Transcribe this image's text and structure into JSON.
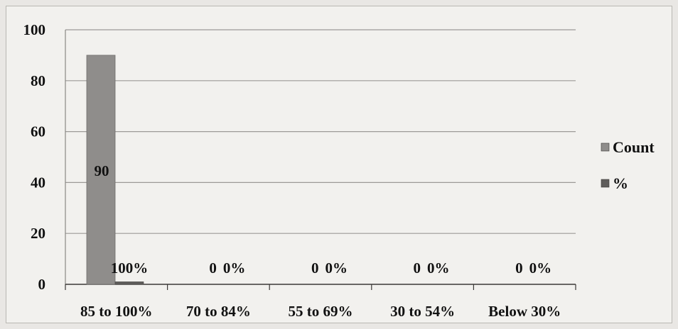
{
  "chart_data": {
    "type": "bar",
    "categories": [
      "85 to 100%",
      "70 to 84%",
      "55 to 69%",
      "30 to 54%",
      "Below 30%"
    ],
    "series": [
      {
        "name": "Count",
        "values": [
          90,
          0,
          0,
          0,
          0
        ],
        "labels": [
          "90",
          "0",
          "0",
          "0",
          "0"
        ],
        "color": "#8f8d8b"
      },
      {
        "name": "%",
        "values": [
          1,
          0,
          0,
          0,
          0
        ],
        "labels": [
          "100%",
          "0%",
          "0%",
          "0%",
          "0%"
        ],
        "color": "#5f5d5b"
      }
    ],
    "title": "",
    "xlabel": "",
    "ylabel": "",
    "ylim": [
      0,
      100
    ],
    "yticks": [
      0,
      20,
      40,
      60,
      80,
      100
    ],
    "grid": true,
    "legend": "right"
  }
}
